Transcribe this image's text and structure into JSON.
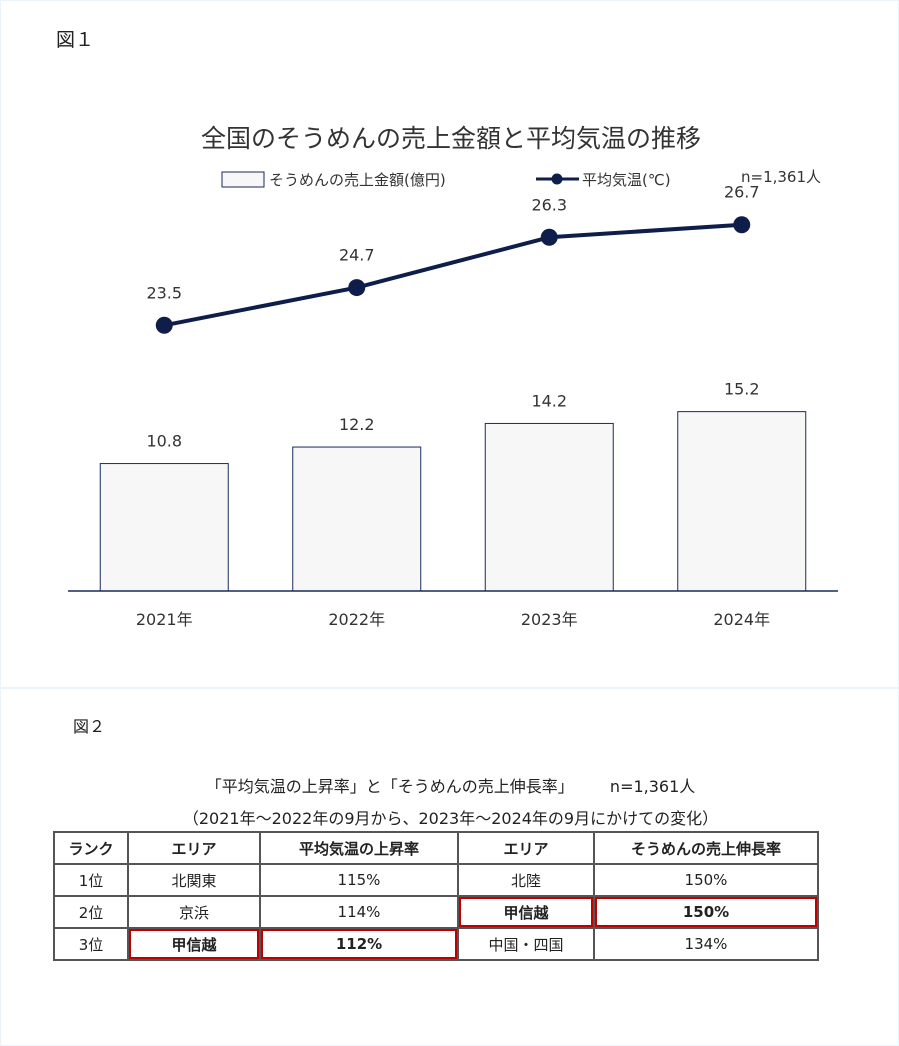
{
  "fig1_label": "図１",
  "fig2_label": "図２",
  "chart_data": {
    "type": "bar",
    "title": "全国のそうめんの売上金額と平均気温の推移",
    "note": "n=1,361人",
    "categories": [
      "2021年",
      "2022年",
      "2023年",
      "2024年"
    ],
    "series": [
      {
        "name": "そうめんの売上金額(億円)",
        "kind": "bar",
        "values": [
          10.8,
          12.2,
          14.2,
          15.2
        ],
        "labels": [
          "10.8",
          "12.2",
          "14.2",
          "15.2"
        ]
      },
      {
        "name": "平均気温(℃)",
        "kind": "line",
        "values": [
          23.5,
          24.7,
          26.3,
          26.7
        ],
        "labels": [
          "23.5",
          "24.7",
          "26.3",
          "26.7"
        ]
      }
    ],
    "ylim_bar": [
      0,
      20
    ],
    "ylim_line": [
      16,
      30
    ],
    "legend": "top",
    "grid": false,
    "colors": {
      "bar_fill": "#f7f7f7",
      "bar_edge": "#1a2a5a",
      "line": "#0f1d4a",
      "axis": "#1a2a5a"
    }
  },
  "table": {
    "title": "「平均気温の上昇率」と「そうめんの売上伸長率」",
    "n": "n=1,361人",
    "subtitle": "（2021年～2022年の9月から、2023年～2024年の9月にかけての変化）",
    "headers": [
      "ランク",
      "エリア",
      "平均気温の上昇率",
      "エリア",
      "そうめんの売上伸長率"
    ],
    "rows": [
      [
        "1位",
        "北関東",
        "115%",
        "北陸",
        "150%"
      ],
      [
        "2位",
        "京浜",
        "114%",
        "甲信越",
        "150%"
      ],
      [
        "3位",
        "甲信越",
        "112%",
        "中国・四国",
        "134%"
      ]
    ],
    "highlight_color": "#c00000"
  }
}
